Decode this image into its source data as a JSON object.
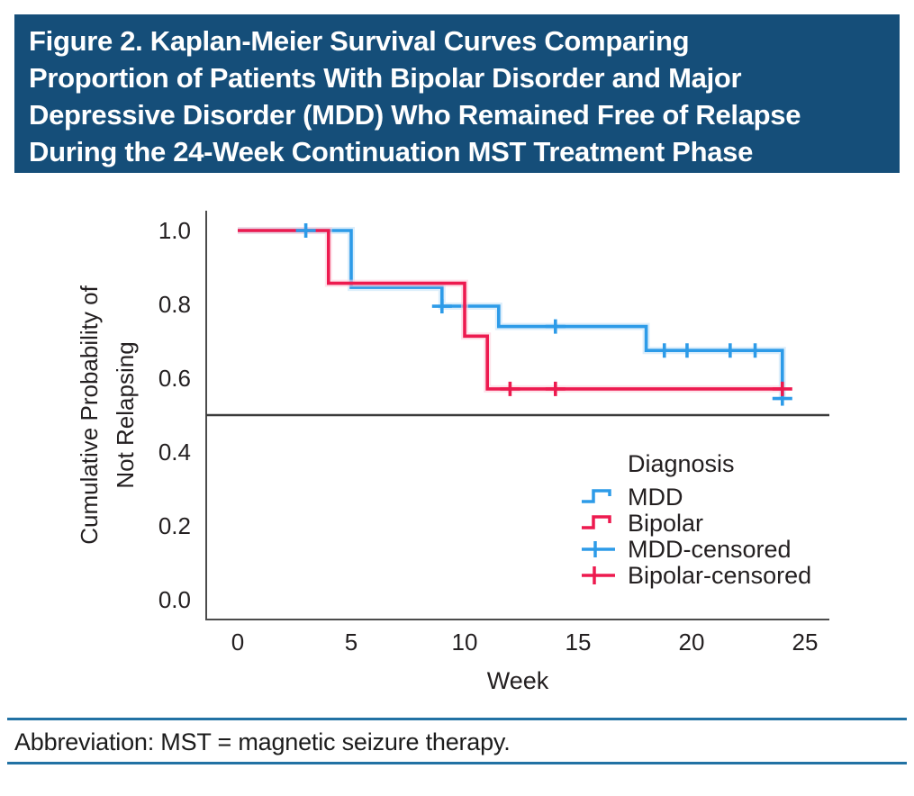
{
  "header": {
    "title_lines": [
      "Figure 2. Kaplan-Meier Survival Curves Comparing",
      "Proportion of Patients With Bipolar Disorder and Major",
      "Depressive Disorder (MDD) Who Remained Free of Relapse",
      "During the 24-Week Continuation MST Treatment Phase"
    ],
    "bg_color": "#154e79",
    "text_color": "#ffffff"
  },
  "chart_data": {
    "type": "line",
    "subtype": "kaplan-meier-step",
    "title": "",
    "xlabel": "Week",
    "ylabel_lines": [
      "Cumulative Probability of",
      "Not Relapsing"
    ],
    "xlim": [
      0,
      26
    ],
    "ylim": [
      0.0,
      1.0
    ],
    "xticks": [
      0,
      5,
      10,
      15,
      20,
      25
    ],
    "xtick_labels": [
      "0",
      "5",
      "10",
      "15",
      "20",
      "25"
    ],
    "yticks": [
      0.0,
      0.2,
      0.4,
      0.6,
      0.8,
      1.0
    ],
    "ytick_labels": [
      "0.0",
      "0.2",
      "0.4",
      "0.6",
      "0.8",
      "1.0"
    ],
    "grid": false,
    "reference_line_y": 0.5,
    "legend_position": "lower right",
    "legend_title": "Diagnosis",
    "legend_entries": [
      "MDD",
      "Bipolar",
      "MDD-censored",
      "Bipolar-censored"
    ],
    "axis_color": "#4c4c4c",
    "reference_line_color": "#3b3b3b",
    "series": [
      {
        "name": "MDD",
        "color": "#2d9be8",
        "halo": "#bfe0f8",
        "steps": [
          [
            0,
            1.0
          ],
          [
            5,
            1.0
          ],
          [
            5,
            0.846
          ],
          [
            9,
            0.846
          ],
          [
            9,
            0.795
          ],
          [
            11.5,
            0.795
          ],
          [
            11.5,
            0.74
          ],
          [
            18,
            0.74
          ],
          [
            18,
            0.675
          ],
          [
            24,
            0.675
          ],
          [
            24,
            0.545
          ]
        ],
        "censored": [
          [
            3,
            1.0
          ],
          [
            9,
            0.795
          ],
          [
            14,
            0.74
          ],
          [
            18.8,
            0.675
          ],
          [
            19.8,
            0.675
          ],
          [
            21.7,
            0.675
          ],
          [
            22.8,
            0.675
          ],
          [
            24,
            0.545
          ]
        ]
      },
      {
        "name": "Bipolar",
        "color": "#ed1a4f",
        "halo": "#fbccd8",
        "steps": [
          [
            0,
            1.0
          ],
          [
            4,
            1.0
          ],
          [
            4,
            0.857
          ],
          [
            10,
            0.857
          ],
          [
            10,
            0.714
          ],
          [
            11,
            0.714
          ],
          [
            11,
            0.571
          ],
          [
            24,
            0.571
          ]
        ],
        "censored": [
          [
            12,
            0.571
          ],
          [
            14,
            0.571
          ],
          [
            24,
            0.571
          ]
        ]
      }
    ]
  },
  "footer": {
    "abbreviation_note": "Abbreviation: MST = magnetic seizure therapy.",
    "rule_color": "#2272a4"
  }
}
